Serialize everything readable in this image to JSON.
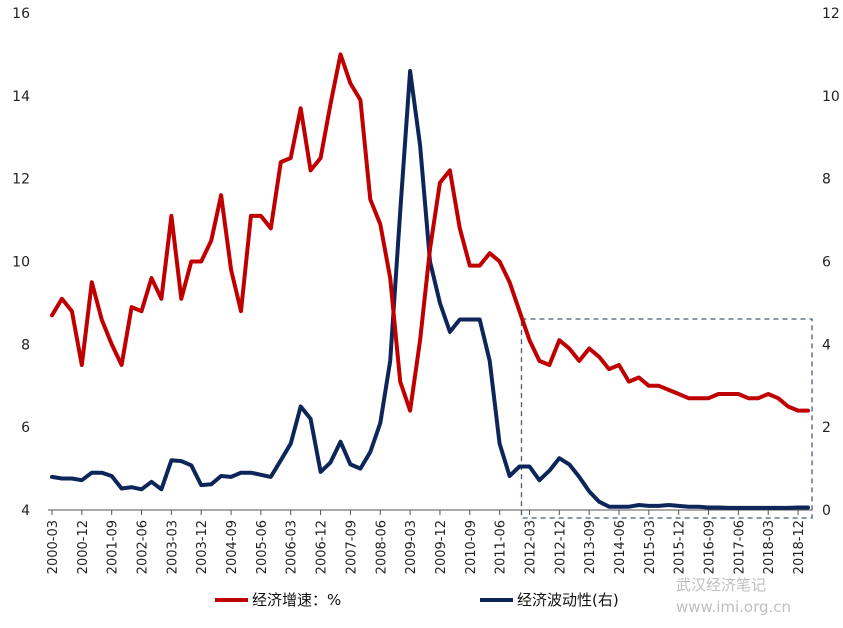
{
  "colors": {
    "growth": "#c00000",
    "volatility": "#0d2559",
    "axis": "#555555",
    "box": "#4a5a78"
  },
  "watermark": {
    "line1": "武汉经济笔记",
    "line2": "www.imi.org.cn"
  },
  "chart_data": {
    "type": "line",
    "y_left": {
      "range": [
        4,
        16
      ],
      "ticks": [
        4,
        6,
        8,
        10,
        12,
        14,
        16
      ]
    },
    "y_right": {
      "range": [
        0,
        12
      ],
      "ticks": [
        0,
        2,
        4,
        6,
        8,
        10,
        12
      ]
    },
    "x_tick_labels": [
      "2000-03",
      "2000-12",
      "2001-09",
      "2002-06",
      "2003-03",
      "2003-12",
      "2004-09",
      "2005-06",
      "2006-03",
      "2006-12",
      "2007-09",
      "2008-06",
      "2009-03",
      "2009-12",
      "2010-09",
      "2011-06",
      "2012-03",
      "2012-12",
      "2013-09",
      "2014-06",
      "2015-03",
      "2015-12",
      "2016-09",
      "2017-06",
      "2018-03",
      "2018-12"
    ],
    "highlight_box": {
      "from": "2012-03",
      "to": "2018-12",
      "label": ""
    },
    "series": [
      {
        "name": "经济增速：%",
        "axis": "left",
        "values": [
          8.7,
          9.1,
          8.8,
          7.5,
          9.5,
          8.6,
          8.0,
          7.5,
          8.9,
          8.8,
          9.6,
          9.1,
          11.1,
          9.1,
          10.0,
          10.0,
          10.5,
          11.6,
          9.8,
          8.8,
          11.1,
          11.1,
          10.8,
          12.4,
          12.5,
          13.7,
          12.2,
          12.5,
          13.8,
          15.0,
          14.3,
          13.9,
          11.5,
          10.9,
          9.6,
          7.1,
          6.4,
          8.1,
          10.3,
          11.9,
          12.2,
          10.8,
          9.9,
          9.9,
          10.2,
          10.0,
          9.5,
          8.8,
          8.1,
          7.6,
          7.5,
          8.1,
          7.9,
          7.6,
          7.9,
          7.7,
          7.4,
          7.5,
          7.1,
          7.2,
          7.0,
          7.0,
          6.9,
          6.8,
          6.7,
          6.7,
          6.7,
          6.8,
          6.8,
          6.8,
          6.7,
          6.7,
          6.8,
          6.7,
          6.5,
          6.4,
          6.4
        ]
      },
      {
        "name": "经济波动性(右)",
        "axis": "right",
        "values": [
          0.8,
          0.76,
          0.76,
          0.72,
          0.9,
          0.9,
          0.82,
          0.52,
          0.55,
          0.5,
          0.68,
          0.5,
          1.2,
          1.18,
          1.08,
          0.6,
          0.62,
          0.82,
          0.8,
          0.9,
          0.9,
          0.85,
          0.8,
          1.2,
          1.6,
          2.5,
          2.2,
          0.92,
          1.15,
          1.65,
          1.1,
          1.0,
          1.4,
          2.1,
          3.6,
          7.2,
          10.6,
          8.8,
          6.0,
          5.0,
          4.3,
          4.6,
          4.6,
          4.6,
          3.6,
          1.6,
          0.82,
          1.05,
          1.05,
          0.72,
          0.95,
          1.25,
          1.1,
          0.8,
          0.45,
          0.2,
          0.08,
          0.08,
          0.08,
          0.12,
          0.1,
          0.1,
          0.12,
          0.1,
          0.08,
          0.08,
          0.06,
          0.06,
          0.05,
          0.05,
          0.05,
          0.05,
          0.05,
          0.05,
          0.05,
          0.06,
          0.06
        ]
      }
    ]
  }
}
